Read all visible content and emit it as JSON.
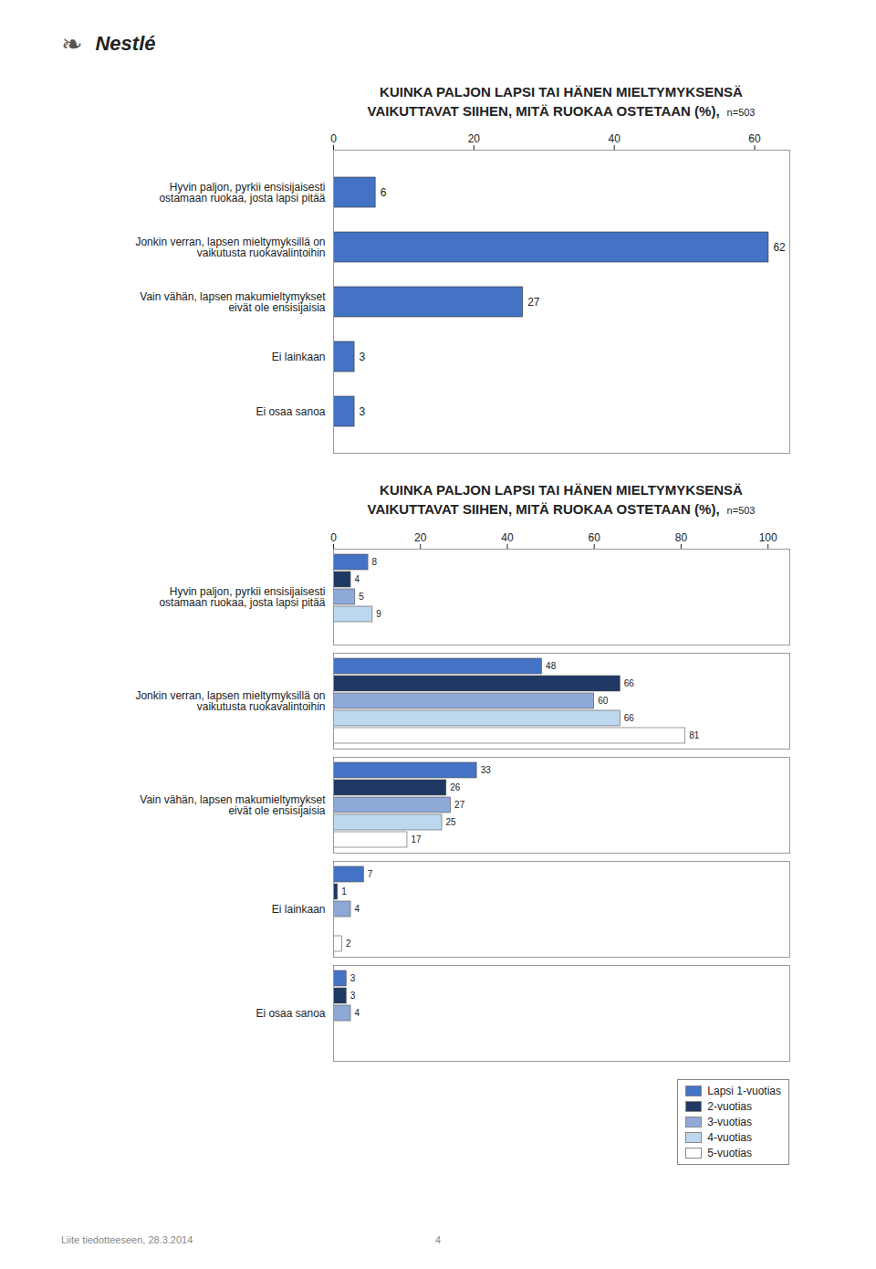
{
  "chart_data": [
    {
      "type": "bar",
      "orientation": "horizontal",
      "title": "KUINKA PALJON LAPSI TAI HÄNEN MIELTYMYKSENSÄ\nVAIKUTTAVAT SIIHEN, MITÄ RUOKAA OSTETAAN (%),",
      "subtitle": "n=503",
      "annotations": [
        "❧",
        "Nestlé"
      ],
      "categories": [
        "Hyvin paljon, pyrkii ensisijaisesti\nostamaan ruokaa, josta lapsi pitää",
        "Jonkin verran, lapsen mieltymyksillä on\nvaikutusta ruokavalintoihin",
        "Vain vähän, lapsen makumieltymykset\neivät ole ensisijaisia",
        "Ei lainkaan",
        "Ei osaa sanoa"
      ],
      "values": [
        6,
        62,
        27,
        3,
        3
      ],
      "color": "#4472C4",
      "xlim": [
        0,
        65
      ],
      "xticks": [
        0,
        20,
        40,
        60
      ],
      "grid": false,
      "data_labels": true
    },
    {
      "type": "bar",
      "orientation": "horizontal",
      "title": "KUINKA PALJON LAPSI TAI HÄNEN MIELTYMYKSENSÄ\nVAIKUTTAVAT SIIHEN, MITÄ RUOKAA OSTETAAN (%),",
      "subtitle": "n=503",
      "annotations": [
        "Liite tiedotteeseen, 28.3.2014",
        "4"
      ],
      "categories": [
        "Hyvin paljon, pyrkii ensisijaisesti\nostamaan ruokaa, josta lapsi pitää",
        "Jonkin verran, lapsen mieltymyksillä on\nvaikutusta ruokavalintoihin",
        "Vain vähän, lapsen makumieltymykset\neivät ole ensisijaisia",
        "Ei lainkaan",
        "Ei osaa sanoa"
      ],
      "series": [
        {
          "name": "Lapsi 1-vuotias",
          "color": "#4472C4",
          "values": [
            8,
            48,
            33,
            7,
            3
          ]
        },
        {
          "name": "2-vuotias",
          "color": "#1F3864",
          "values": [
            4,
            66,
            26,
            1,
            3
          ]
        },
        {
          "name": "3-vuotias",
          "color": "#8EA9D8",
          "values": [
            5,
            60,
            27,
            4,
            4
          ]
        },
        {
          "name": "4-vuotias",
          "color": "#BDD7EE",
          "values": [
            9,
            66,
            25,
            0,
            0
          ],
          "value_labels": [
            "9",
            "66",
            "25",
            null,
            null
          ]
        },
        {
          "name": "5-vuotias",
          "color": "#FFFFFF",
          "values": [
            0,
            81,
            17,
            2,
            0
          ],
          "value_labels": [
            null,
            "81",
            "17",
            "2",
            null
          ]
        }
      ],
      "xlim": [
        0,
        105
      ],
      "xticks": [
        0,
        20,
        40,
        60,
        80,
        100
      ],
      "grid": false,
      "legend": "lower right",
      "data_labels": true
    }
  ]
}
